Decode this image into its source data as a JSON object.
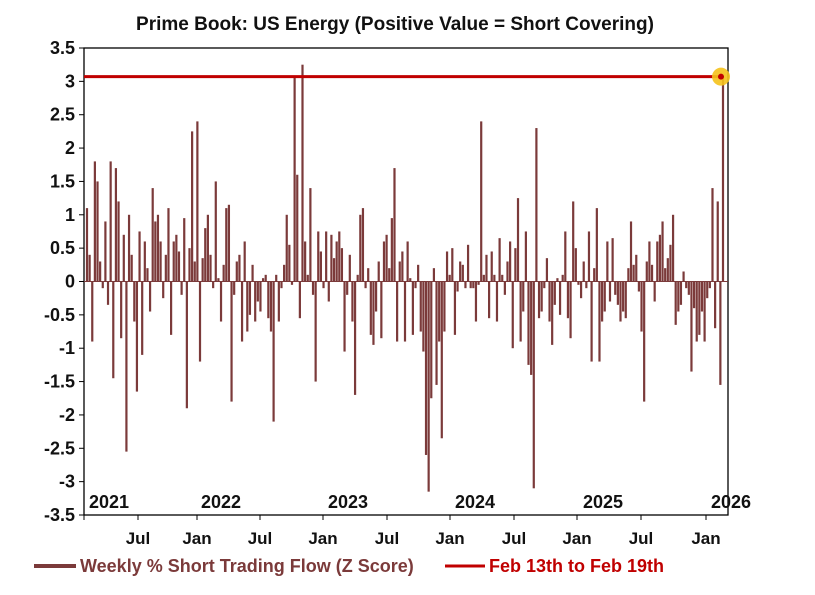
{
  "chart_data": {
    "type": "bar",
    "title": "Prime Book: US Energy (Positive Value = Short Covering)",
    "xlabel": "",
    "ylabel": "",
    "ylim": [
      -3.5,
      3.5
    ],
    "yticks": [
      "3.5",
      "3",
      "2.5",
      "2",
      "1.5",
      "1",
      "0.5",
      "0",
      "-0.5",
      "-1",
      "-1.5",
      "-2",
      "-2.5",
      "-3",
      "-3.5"
    ],
    "year_labels": [
      "2021",
      "2022",
      "2023",
      "2024",
      "2025",
      "2026"
    ],
    "month_labels": [
      "Jul",
      "Jan",
      "Jul",
      "Jan",
      "Jul",
      "Jan",
      "Jul",
      "Jan",
      "Jul",
      "Jan",
      "Jul",
      "Jan"
    ],
    "reference_line": {
      "name": "Feb 13th to Feb 19th",
      "value": 3.07,
      "color": "#c00000"
    },
    "highlight_value": 3.07,
    "bar_color": "#7b3a3a",
    "highlight_color": "#f5c21b",
    "series": [
      {
        "name": "Weekly % Short Trading Flow (Z Score)",
        "values": [
          1.1,
          0.4,
          -0.9,
          1.8,
          1.5,
          0.3,
          -0.1,
          0.9,
          -0.35,
          1.8,
          -1.45,
          1.7,
          1.2,
          -0.85,
          0.7,
          -2.55,
          1.0,
          0.4,
          -0.6,
          -1.65,
          0.75,
          -1.1,
          0.6,
          0.2,
          -0.45,
          1.4,
          0.9,
          1.0,
          0.6,
          -0.25,
          0.4,
          1.1,
          -0.8,
          0.6,
          0.7,
          0.45,
          -0.2,
          0.95,
          -1.9,
          0.5,
          2.25,
          0.3,
          2.4,
          -1.2,
          0.35,
          0.8,
          1.0,
          0.4,
          -0.1,
          1.5,
          0.05,
          -0.6,
          0.25,
          1.1,
          1.15,
          -1.8,
          -0.2,
          0.3,
          0.4,
          -0.9,
          0.6,
          -0.75,
          -0.5,
          0.25,
          -0.6,
          -0.3,
          -0.45,
          0.05,
          0.1,
          -0.55,
          -0.75,
          -2.1,
          0.1,
          -0.6,
          -0.1,
          0.25,
          1.0,
          0.55,
          -0.05,
          3.05,
          1.6,
          -0.55,
          3.25,
          0.6,
          0.1,
          1.4,
          -0.2,
          -1.5,
          0.75,
          0.45,
          -0.1,
          0.75,
          -0.3,
          0.7,
          0.35,
          0.6,
          0.75,
          0.5,
          -1.05,
          -0.2,
          0.4,
          -0.6,
          -1.7,
          0.1,
          1.0,
          1.1,
          -0.1,
          0.2,
          -0.8,
          -0.95,
          -0.45,
          0.3,
          -0.85,
          0.6,
          0.7,
          0.2,
          0.95,
          1.7,
          -0.9,
          0.3,
          0.45,
          -0.9,
          0.6,
          0.05,
          -0.8,
          -0.1,
          0.25,
          -0.75,
          -1.05,
          -2.6,
          -3.15,
          -1.75,
          0.2,
          -1.55,
          -0.9,
          -2.35,
          -0.75,
          0.45,
          0.1,
          0.5,
          -0.8,
          -0.15,
          0.3,
          0.25,
          -0.1,
          0.55,
          -0.1,
          -0.1,
          -0.6,
          -0.05,
          2.4,
          0.1,
          0.4,
          -0.55,
          0.45,
          0.1,
          -0.6,
          0.65,
          0.1,
          -0.2,
          0.3,
          0.6,
          -1.0,
          0.5,
          1.25,
          -0.9,
          -0.45,
          0.75,
          -1.25,
          -1.4,
          -3.1,
          2.3,
          -0.55,
          -0.45,
          -0.1,
          0.35,
          -0.6,
          -0.95,
          -0.35,
          0.05,
          -0.5,
          0.1,
          0.75,
          -0.55,
          -0.85,
          1.2,
          0.5,
          -0.05,
          -0.25,
          0.3,
          -0.1,
          0.75,
          -1.2,
          0.2,
          1.1,
          -1.2,
          -0.6,
          -0.45,
          0.6,
          -0.3,
          0.65,
          -0.2,
          -0.35,
          -0.6,
          -0.45,
          -0.55,
          0.2,
          0.9,
          0.25,
          0.4,
          -0.15,
          -0.75,
          -1.8,
          0.3,
          0.6,
          0.25,
          -0.3,
          0.6,
          0.7,
          0.9,
          0.2,
          0.35,
          0.55,
          1.0,
          -0.65,
          -0.45,
          -0.35,
          0.15,
          -0.1,
          -0.2,
          -1.35,
          -0.4,
          -0.9,
          -0.8,
          -0.45,
          -0.9,
          -0.25,
          -0.1,
          1.4,
          -0.7,
          1.2,
          -1.55,
          3.07
        ]
      }
    ]
  }
}
